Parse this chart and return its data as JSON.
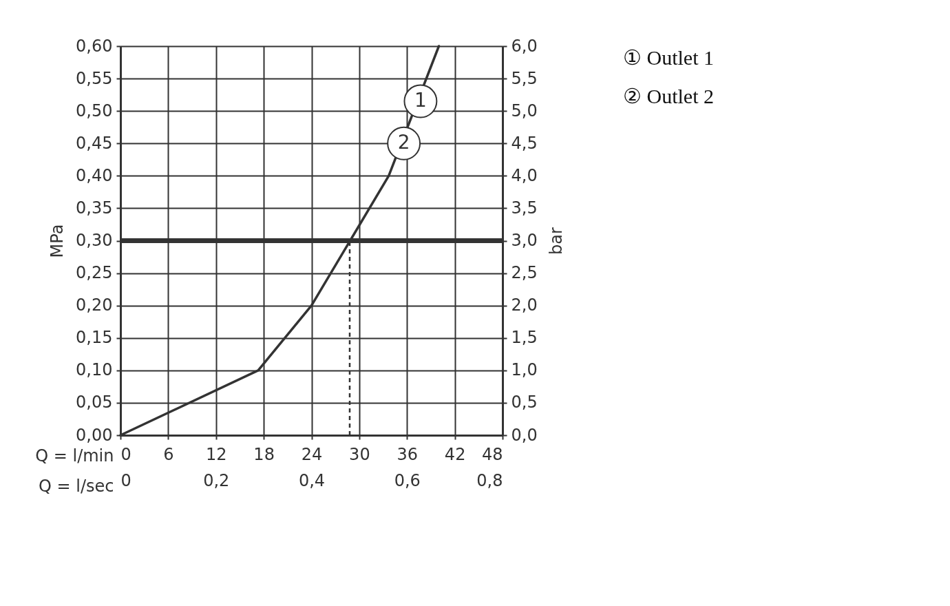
{
  "chart_data": {
    "type": "line",
    "xlabel": "Q = l/min",
    "x2label": "Q = l/sec",
    "ylabel": "MPa",
    "y2label": "bar",
    "series": [
      {
        "color": "#333333",
        "x": [
          0,
          17.3,
          24.0,
          33.7,
          40.0
        ],
        "values": [
          0,
          0.1,
          0.2,
          0.4,
          0.6
        ]
      }
    ],
    "xlim": [
      0,
      48
    ],
    "xticks": [
      0,
      6,
      12,
      18,
      24,
      30,
      36,
      42,
      48
    ],
    "x2lim": [
      0,
      0.8
    ],
    "x2ticks": [
      0,
      {
        "value": 0.2,
        "label": "0,2"
      },
      {
        "value": 0.4,
        "label": "0,4"
      },
      {
        "value": 0.6,
        "label": "0,6"
      },
      {
        "value": 0.8,
        "label": "0,8"
      }
    ],
    "ylim": [
      0,
      0.6
    ],
    "yticks": [
      {
        "value": 0,
        "label": "0,00"
      },
      {
        "value": 0.05,
        "label": "0,05"
      },
      {
        "value": 0.1,
        "label": "0,10"
      },
      {
        "value": 0.15,
        "label": "0,15"
      },
      {
        "value": 0.2,
        "label": "0,20"
      },
      {
        "value": 0.25,
        "label": "0,25"
      },
      {
        "value": 0.3,
        "label": "0,30"
      },
      {
        "value": 0.35,
        "label": "0,35"
      },
      {
        "value": 0.4,
        "label": "0,40"
      },
      {
        "value": 0.45,
        "label": "0,45"
      },
      {
        "value": 0.5,
        "label": "0,50"
      },
      {
        "value": 0.55,
        "label": "0,55"
      },
      {
        "value": 0.6,
        "label": "0,60"
      }
    ],
    "y2lim": [
      0,
      6
    ],
    "y2ticks": [
      {
        "value": 0,
        "label": "0,0"
      },
      {
        "value": 0.5,
        "label": "0,5"
      },
      {
        "value": 1,
        "label": "1,0"
      },
      {
        "value": 1.5,
        "label": "1,5"
      },
      {
        "value": 2,
        "label": "2,0"
      },
      {
        "value": 2.5,
        "label": "2,5"
      },
      {
        "value": 3,
        "label": "3,0"
      },
      {
        "value": 3.5,
        "label": "3,5"
      },
      {
        "value": 4,
        "label": "4,0"
      },
      {
        "value": 4.5,
        "label": "4,5"
      },
      {
        "value": 5,
        "label": "5,0"
      },
      {
        "value": 5.5,
        "label": "5,5"
      },
      {
        "value": 6,
        "label": "6,0"
      }
    ],
    "ref_lines": [
      {
        "axis": "y",
        "value": 0.3,
        "color": "#333333"
      },
      {
        "axis": "x",
        "value": 28.8,
        "color": "#333333",
        "line_style": "dashed"
      }
    ],
    "annotations": [
      {
        "text": "1",
        "x": 37.7,
        "y": 0.515
      },
      {
        "text": "2",
        "x": 35.6,
        "y": 0.45
      },
      "① Outlet 1",
      "② Outlet 2"
    ],
    "grid": true,
    "marker": "none",
    "line_style": "solid"
  }
}
